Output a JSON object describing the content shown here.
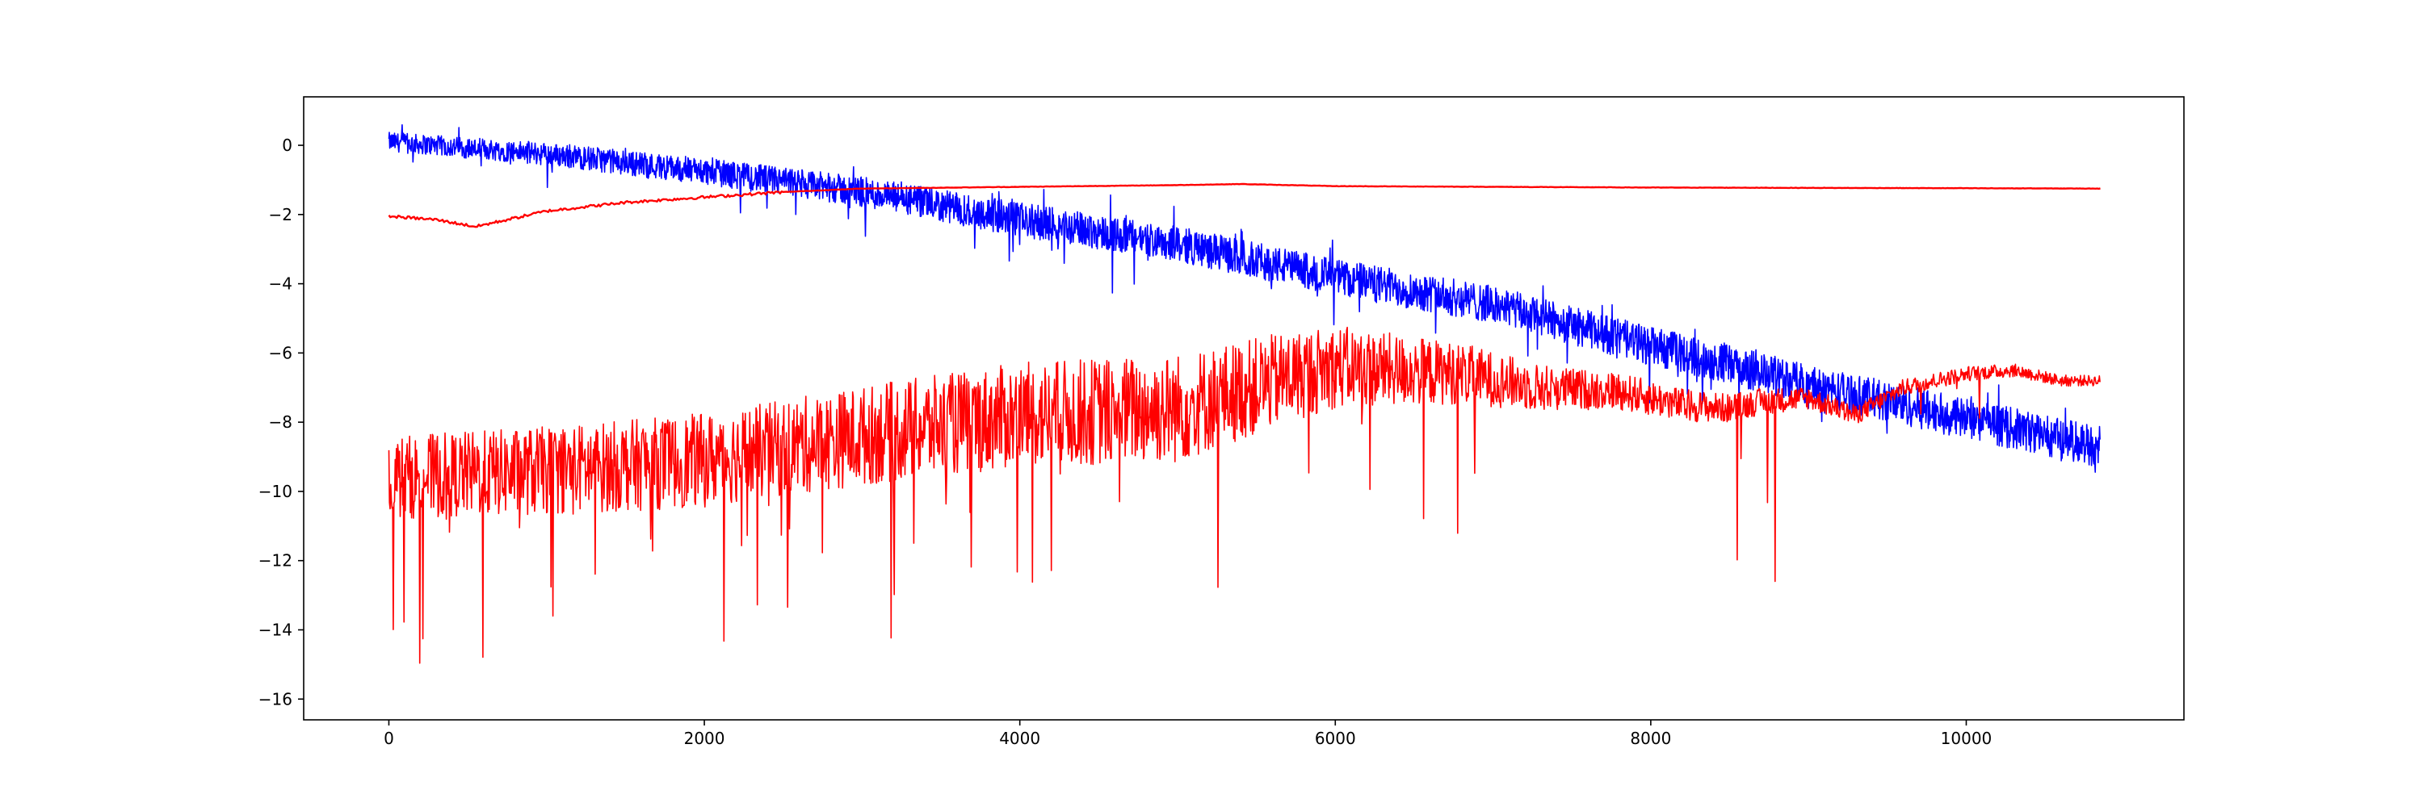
{
  "chart_data": {
    "type": "line",
    "title": "",
    "xlabel": "",
    "ylabel": "",
    "xlim": [
      -540,
      11380
    ],
    "ylim": [
      -16.6,
      1.4
    ],
    "x_ticks": [
      0,
      2000,
      4000,
      6000,
      8000,
      10000
    ],
    "x_tick_labels": [
      "0",
      "2000",
      "4000",
      "6000",
      "8000",
      "10000"
    ],
    "y_ticks": [
      0,
      -2,
      -4,
      -6,
      -8,
      -10,
      -12,
      -14,
      -16
    ],
    "y_tick_labels": [
      "0",
      "−2",
      "−4",
      "−6",
      "−8",
      "−10",
      "−12",
      "−14",
      "−16"
    ],
    "grid": false,
    "legend": "none",
    "n_points": 10850,
    "series": [
      {
        "color": "#0000ff",
        "style": "noisy",
        "description_points": [
          [
            0,
            0.1
          ],
          [
            1000,
            -0.25
          ],
          [
            2000,
            -0.75
          ],
          [
            3000,
            -1.35
          ],
          [
            4000,
            -2.15
          ],
          [
            5000,
            -2.85
          ],
          [
            6000,
            -3.8
          ],
          [
            7000,
            -4.6
          ],
          [
            8000,
            -5.8
          ],
          [
            9000,
            -6.9
          ],
          [
            10000,
            -7.9
          ],
          [
            10850,
            -8.7
          ]
        ],
        "noise": [
          [
            0,
            0.5
          ],
          [
            4000,
            0.9
          ],
          [
            10850,
            1.1
          ]
        ]
      },
      {
        "color": "#ff0000",
        "style": "smooth",
        "points": [
          [
            0,
            -2.05
          ],
          [
            300,
            -2.15
          ],
          [
            550,
            -2.35
          ],
          [
            800,
            -2.1
          ],
          [
            1000,
            -1.9
          ],
          [
            1500,
            -1.65
          ],
          [
            2000,
            -1.5
          ],
          [
            2500,
            -1.35
          ],
          [
            3000,
            -1.25
          ],
          [
            4000,
            -1.2
          ],
          [
            5000,
            -1.15
          ],
          [
            5400,
            -1.12
          ],
          [
            6000,
            -1.18
          ],
          [
            7000,
            -1.2
          ],
          [
            8000,
            -1.22
          ],
          [
            9000,
            -1.23
          ],
          [
            10000,
            -1.24
          ],
          [
            10850,
            -1.25
          ]
        ]
      },
      {
        "color": "#ff0000",
        "style": "spiky",
        "description_points": [
          [
            0,
            -9.6
          ],
          [
            1000,
            -9.4
          ],
          [
            2000,
            -9.1
          ],
          [
            3000,
            -8.4
          ],
          [
            4000,
            -7.8
          ],
          [
            5000,
            -7.6
          ],
          [
            5700,
            -6.7
          ],
          [
            6000,
            -6.4
          ],
          [
            6800,
            -6.6
          ],
          [
            7300,
            -7.0
          ],
          [
            7800,
            -7.1
          ],
          [
            8200,
            -7.5
          ],
          [
            8500,
            -7.6
          ],
          [
            8700,
            -7.4
          ],
          [
            9000,
            -7.3
          ],
          [
            9300,
            -7.8
          ],
          [
            9600,
            -7.0
          ],
          [
            10000,
            -6.6
          ],
          [
            10300,
            -6.5
          ],
          [
            10600,
            -6.8
          ],
          [
            10850,
            -6.8
          ]
        ],
        "noise": [
          [
            0,
            1.2
          ],
          [
            5000,
            1.6
          ],
          [
            7500,
            0.6
          ],
          [
            8600,
            0.4
          ],
          [
            9500,
            0.25
          ],
          [
            10850,
            0.15
          ]
        ]
      }
    ]
  }
}
